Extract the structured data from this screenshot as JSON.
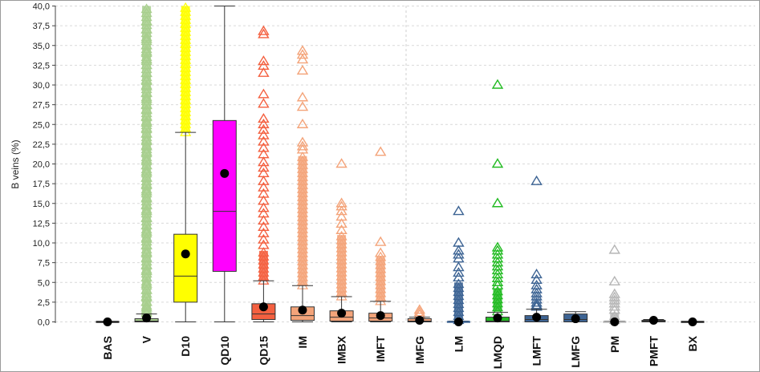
{
  "chart_data": {
    "type": "box",
    "ylabel": "B veins (%)",
    "xlabel": "",
    "ylim": [
      0,
      40
    ],
    "yticks": [
      "0,0",
      "2,5",
      "5,0",
      "7,5",
      "10,0",
      "12,5",
      "15,0",
      "17,5",
      "20,0",
      "22,5",
      "25,0",
      "27,5",
      "30,0",
      "32,5",
      "35,0",
      "37,5",
      "40,0"
    ],
    "grid": true,
    "legend": "none",
    "categories": [
      "BAS",
      "V",
      "D10",
      "QD10",
      "QD15",
      "IM",
      "IMBX",
      "IMFT",
      "IMFG",
      "LM",
      "LMQD",
      "LMFT",
      "LMFG",
      "PM",
      "PMFT",
      "BX"
    ],
    "boxes": [
      {
        "name": "BAS",
        "min": 0,
        "q1": 0,
        "median": 0,
        "q3": 0,
        "max": 0,
        "mean": 0,
        "color": "#1a1a1a",
        "outliers": []
      },
      {
        "name": "V",
        "min": 0,
        "q1": 0,
        "median": 0.1,
        "q3": 0.4,
        "max": 1.0,
        "mean": 0.5,
        "color": "#a8cf8e",
        "dense_outliers": [
          0.5,
          40
        ],
        "outliers": [
          38,
          37,
          35.8,
          35,
          34.2,
          33.2,
          32.5,
          31.5,
          30.6,
          29.8,
          29,
          28.2,
          27.5,
          26.8,
          26,
          25.2,
          24.5,
          23.8,
          23,
          22.2,
          21.5,
          20.5,
          19.8,
          19,
          18.2,
          17.4,
          16.5,
          15.6,
          14.8,
          14,
          13.1,
          12.2,
          11.4,
          10.5,
          9.7,
          8.8,
          8,
          7.2,
          6.4,
          5.6,
          4.8,
          4,
          3.2,
          2.5,
          1.8,
          1.2
        ]
      },
      {
        "name": "D10",
        "min": 0,
        "q1": 2.5,
        "median": 5.8,
        "q3": 11.1,
        "max": 24,
        "mean": 8.6,
        "color": "#ffff00",
        "dense_outliers": [
          24,
          40
        ],
        "outliers": []
      },
      {
        "name": "QD10",
        "min": 0,
        "q1": 6.4,
        "median": 14,
        "q3": 25.5,
        "max": 40,
        "mean": 18.8,
        "color": "#ff00ff",
        "outliers": []
      },
      {
        "name": "QD15",
        "min": 0,
        "q1": 0.3,
        "median": 1.0,
        "q3": 2.3,
        "max": 5.2,
        "mean": 1.9,
        "color": "#f46040",
        "dense_outliers": [
          5.2,
          9
        ],
        "outliers": [
          36.8,
          36.4,
          33,
          32.4,
          31.5,
          28.8,
          27.6,
          25.7,
          25,
          24.3,
          23.6,
          22.8,
          22,
          21.2,
          20.2,
          19.5,
          18.8,
          17.8,
          17,
          16.2,
          15.3,
          14.4,
          13.7,
          12.8,
          12,
          11.2,
          10.4,
          9.7
        ]
      },
      {
        "name": "IM",
        "min": 0,
        "q1": 0.2,
        "median": 0.8,
        "q3": 1.9,
        "max": 4.6,
        "mean": 1.5,
        "color": "#f4a47a",
        "dense_outliers": [
          4.6,
          21
        ],
        "outliers": [
          34.3,
          33.8,
          33.2,
          31.8,
          28.4,
          27.2,
          25,
          22.7,
          22.2,
          21.8
        ]
      },
      {
        "name": "IMBX",
        "min": 0,
        "q1": 0.1,
        "median": 0.6,
        "q3": 1.4,
        "max": 3.2,
        "mean": 1.1,
        "color": "#f4a47a",
        "dense_outliers": [
          3.2,
          11
        ],
        "outliers": [
          20,
          15,
          14.6,
          14,
          13.3,
          12.4,
          11.6
        ]
      },
      {
        "name": "IMFT",
        "min": 0,
        "q1": 0.1,
        "median": 0.5,
        "q3": 1.1,
        "max": 2.6,
        "mean": 0.8,
        "color": "#f4a47a",
        "dense_outliers": [
          2.6,
          8.2
        ],
        "outliers": [
          21.5,
          10.1,
          8.7
        ]
      },
      {
        "name": "IMFG",
        "min": 0,
        "q1": 0,
        "median": 0.1,
        "q3": 0.4,
        "max": 0.6,
        "mean": 0.2,
        "color": "#f4a47a",
        "outliers": [
          0.9,
          1.2,
          1.5
        ]
      },
      {
        "name": "LM",
        "min": 0,
        "q1": 0,
        "median": 0,
        "q3": 0,
        "max": 0.1,
        "mean": 0,
        "color": "#3d6494",
        "dense_outliers": [
          0.2,
          5
        ],
        "outliers": [
          14,
          10,
          9,
          8.5,
          8,
          6.9,
          6.2,
          5.6
        ]
      },
      {
        "name": "LMQD",
        "min": 0,
        "q1": 0,
        "median": 0.1,
        "q3": 0.6,
        "max": 1.2,
        "mean": 0.5,
        "color": "#22bb22",
        "dense_outliers": [
          1.3,
          4.2
        ],
        "outliers": [
          30,
          20,
          15,
          9.4,
          9,
          8.5,
          8,
          7.5,
          7,
          6.5,
          6,
          5.5,
          5,
          4.6
        ]
      },
      {
        "name": "LMFT",
        "min": 0,
        "q1": 0,
        "median": 0.3,
        "q3": 0.8,
        "max": 1.6,
        "mean": 0.6,
        "color": "#3d6494",
        "outliers": [
          17.8,
          6,
          5.3,
          4.6,
          4.1,
          3.6,
          3.2,
          2.8,
          2.4,
          2.1,
          1.9
        ]
      },
      {
        "name": "LMFG",
        "min": 0,
        "q1": 0,
        "median": 0.3,
        "q3": 1.0,
        "max": 1.3,
        "mean": 0.4,
        "color": "#3d6494",
        "outliers": []
      },
      {
        "name": "PM",
        "min": 0,
        "q1": 0,
        "median": 0,
        "q3": 0,
        "max": 0.1,
        "mean": 0,
        "color": "#b5b5b5",
        "dense_outliers": [
          0.2,
          1.2
        ],
        "outliers": [
          9.1,
          5.1,
          3.5,
          3.1,
          2.7,
          2.3,
          1.9,
          1.5
        ]
      },
      {
        "name": "PMFT",
        "min": 0,
        "q1": 0,
        "median": 0.1,
        "q3": 0.2,
        "max": 0.3,
        "mean": 0.2,
        "color": "#1a1a1a",
        "outliers": []
      },
      {
        "name": "BX",
        "min": 0,
        "q1": 0,
        "median": 0,
        "q3": 0,
        "max": 0,
        "mean": 0,
        "color": "#1a1a1a",
        "outliers": []
      }
    ]
  }
}
